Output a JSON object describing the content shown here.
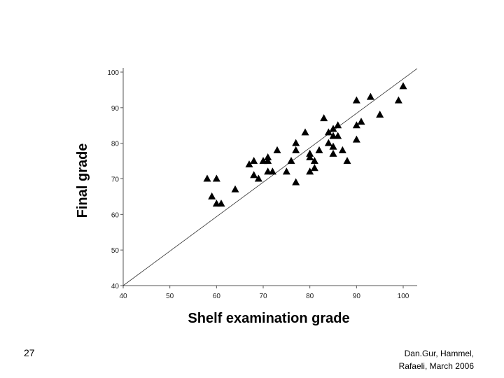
{
  "chart_data": {
    "type": "scatter",
    "title": "",
    "xlabel": "Shelf examination grade",
    "ylabel": "Final grade",
    "xlim": [
      40,
      100
    ],
    "ylim": [
      40,
      100
    ],
    "xticks": [
      "40",
      "50",
      "60",
      "70",
      "80",
      "90",
      "100"
    ],
    "yticks": [
      "40",
      "50",
      "60",
      "70",
      "80",
      "90",
      "100"
    ],
    "grid": false,
    "marker": "triangle",
    "marker_color": "#000000",
    "reference_line": {
      "name": "y = x",
      "from": [
        40,
        40
      ],
      "to": [
        103,
        101
      ]
    },
    "points": [
      {
        "x": 58,
        "y": 70
      },
      {
        "x": 59,
        "y": 65
      },
      {
        "x": 60,
        "y": 70
      },
      {
        "x": 60,
        "y": 63
      },
      {
        "x": 61,
        "y": 63
      },
      {
        "x": 64,
        "y": 67
      },
      {
        "x": 67,
        "y": 74
      },
      {
        "x": 68,
        "y": 75
      },
      {
        "x": 68,
        "y": 71
      },
      {
        "x": 69,
        "y": 70
      },
      {
        "x": 70,
        "y": 75
      },
      {
        "x": 71,
        "y": 76
      },
      {
        "x": 71,
        "y": 75
      },
      {
        "x": 71,
        "y": 72
      },
      {
        "x": 72,
        "y": 72
      },
      {
        "x": 73,
        "y": 78
      },
      {
        "x": 75,
        "y": 72
      },
      {
        "x": 76,
        "y": 75
      },
      {
        "x": 77,
        "y": 80
      },
      {
        "x": 77,
        "y": 78
      },
      {
        "x": 77,
        "y": 69
      },
      {
        "x": 79,
        "y": 83
      },
      {
        "x": 80,
        "y": 77
      },
      {
        "x": 80,
        "y": 76
      },
      {
        "x": 80,
        "y": 72
      },
      {
        "x": 81,
        "y": 75
      },
      {
        "x": 81,
        "y": 73
      },
      {
        "x": 82,
        "y": 78
      },
      {
        "x": 83,
        "y": 87
      },
      {
        "x": 84,
        "y": 83
      },
      {
        "x": 84,
        "y": 80
      },
      {
        "x": 85,
        "y": 84
      },
      {
        "x": 85,
        "y": 82
      },
      {
        "x": 85,
        "y": 79
      },
      {
        "x": 85,
        "y": 77
      },
      {
        "x": 86,
        "y": 85
      },
      {
        "x": 86,
        "y": 82
      },
      {
        "x": 87,
        "y": 78
      },
      {
        "x": 88,
        "y": 75
      },
      {
        "x": 90,
        "y": 92
      },
      {
        "x": 90,
        "y": 85
      },
      {
        "x": 90,
        "y": 81
      },
      {
        "x": 91,
        "y": 86
      },
      {
        "x": 93,
        "y": 93
      },
      {
        "x": 95,
        "y": 88
      },
      {
        "x": 99,
        "y": 92
      },
      {
        "x": 100,
        "y": 96
      }
    ]
  },
  "slide": {
    "number": "27",
    "credit_line1": "Dan.Gur, Hammel,",
    "credit_line2": "Rafaeli, March 2006"
  }
}
